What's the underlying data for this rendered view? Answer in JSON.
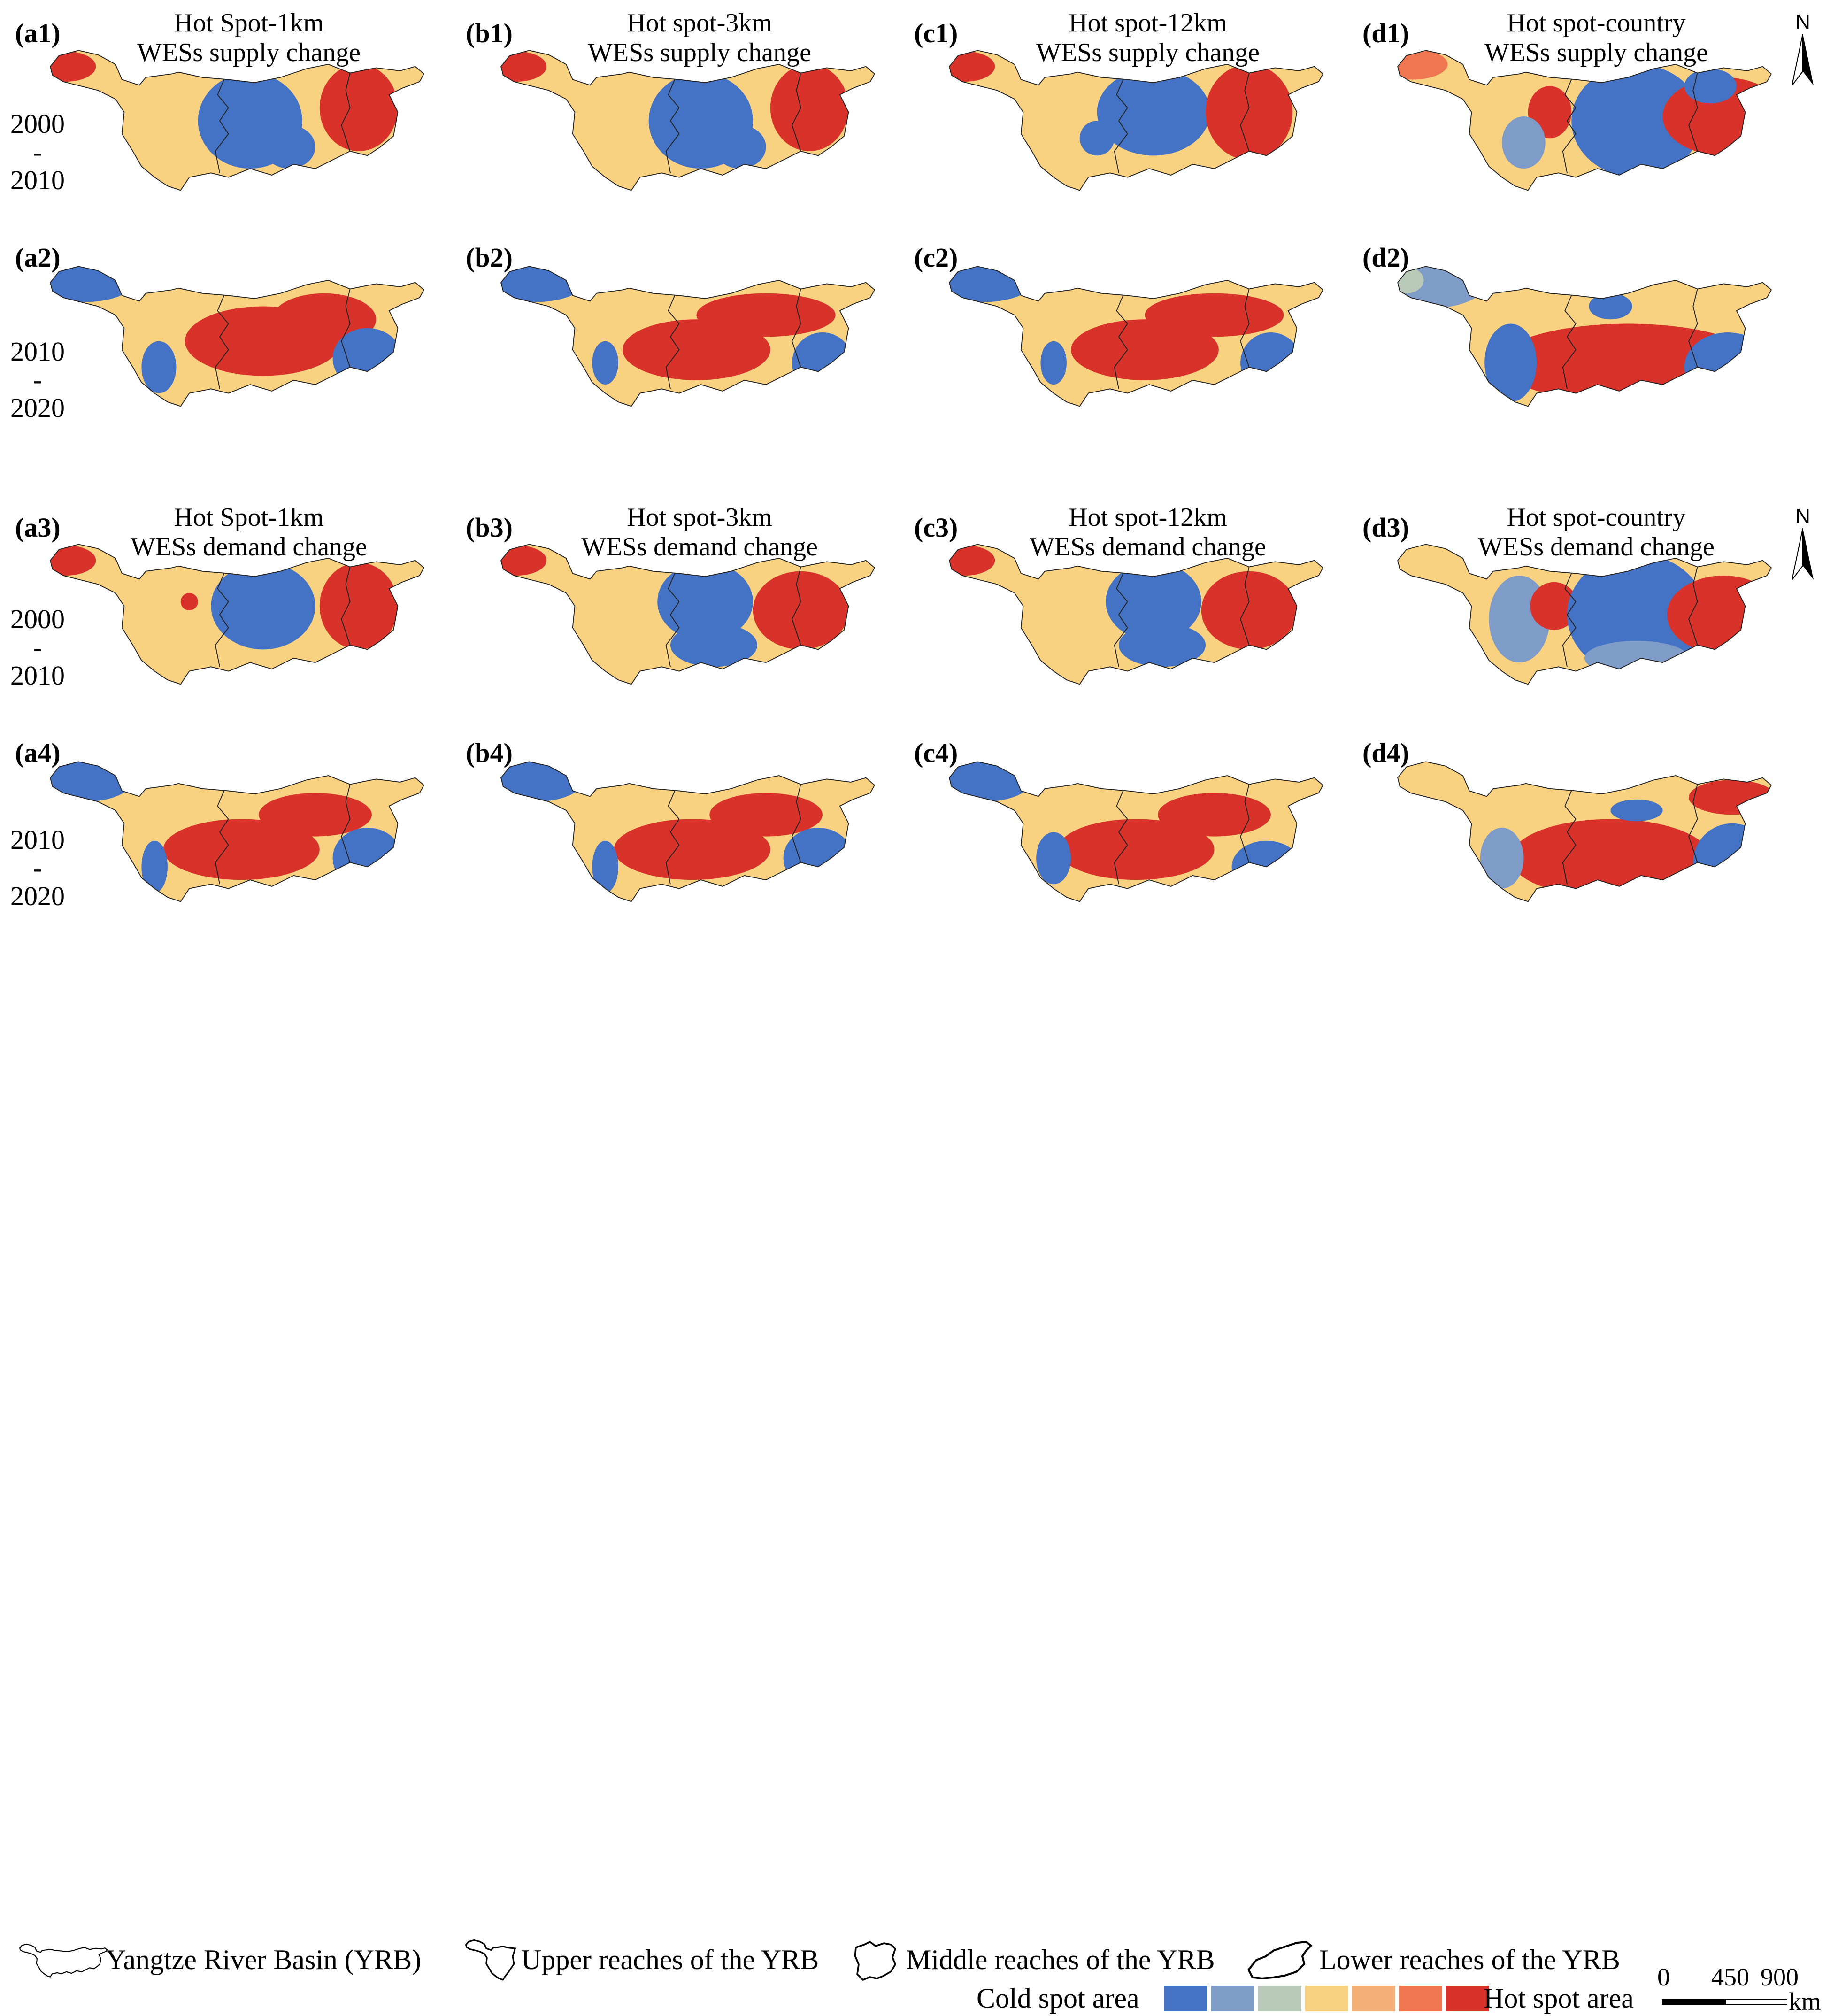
{
  "panels": [
    {
      "id": "(a1)",
      "title1": "Hot Spot-1km",
      "title2": "WESs supply change"
    },
    {
      "id": "(b1)",
      "title1": "Hot spot-3km",
      "title2": "WESs supply change"
    },
    {
      "id": "(c1)",
      "title1": "Hot spot-12km",
      "title2": "WESs supply change"
    },
    {
      "id": "(d1)",
      "title1": "Hot spot-country",
      "title2": "WESs supply change"
    },
    {
      "id": "(a2)"
    },
    {
      "id": "(b2)"
    },
    {
      "id": "(c2)"
    },
    {
      "id": "(d2)"
    },
    {
      "id": "(a3)",
      "title1": "Hot Spot-1km",
      "title2": "WESs demand change"
    },
    {
      "id": "(b3)",
      "title1": "Hot spot-3km",
      "title2": "WESs demand change"
    },
    {
      "id": "(c3)",
      "title1": "Hot spot-12km",
      "title2": "WESs demand change"
    },
    {
      "id": "(d3)",
      "title1": "Hot spot-country",
      "title2": "WESs demand change"
    },
    {
      "id": "(a4)"
    },
    {
      "id": "(b4)"
    },
    {
      "id": "(c4)"
    },
    {
      "id": "(d4)"
    }
  ],
  "periods": [
    {
      "start": "2000",
      "dash": "-",
      "end": "2010"
    },
    {
      "start": "2010",
      "dash": "-",
      "end": "2020"
    },
    {
      "start": "2000",
      "dash": "-",
      "end": "2010"
    },
    {
      "start": "2010",
      "dash": "-",
      "end": "2020"
    }
  ],
  "north_label": "N",
  "legend": {
    "basin": [
      {
        "label": "Yangtze River Basin (YRB)"
      },
      {
        "label": "Upper reaches of the YRB"
      },
      {
        "label": "Middle reaches of the YRB"
      },
      {
        "label": "Lower reaches of the YRB"
      }
    ],
    "cold_label": "Cold spot area",
    "hot_label": "Hot spot area",
    "classes": [
      "#4472c4",
      "#7f9cc8",
      "#b9c9b8",
      "#f8d181",
      "#f5b077",
      "#ee7650",
      "#d9322a"
    ]
  },
  "scale": {
    "ticks": [
      "0",
      "450",
      "900"
    ],
    "unit": "km"
  },
  "colors": {
    "cold": "#4472c4",
    "cold2": "#7f9cc8",
    "neutral": "#f8d181",
    "warm": "#f5b077",
    "hot": "#d9322a",
    "hot2": "#ee7650",
    "neutral2": "#b9c9b8"
  }
}
